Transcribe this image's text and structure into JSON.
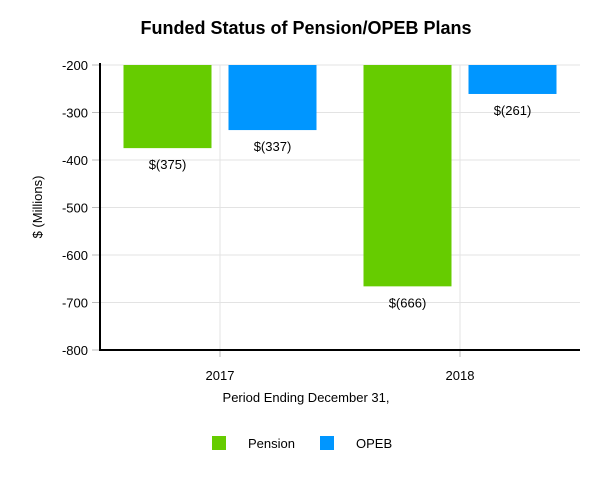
{
  "chart_data": {
    "type": "bar",
    "title": "Funded Status of Pension/OPEB Plans",
    "xlabel": "Period Ending December 31,",
    "ylabel": "$ (Millions)",
    "categories": [
      "2017",
      "2018"
    ],
    "series": [
      {
        "name": "Pension",
        "values": [
          -375,
          -666
        ],
        "labels": [
          "$(375)",
          "$(666)"
        ],
        "color": "#66cc00"
      },
      {
        "name": "OPEB",
        "values": [
          -337,
          -261
        ],
        "labels": [
          "$(337)",
          "$(261)"
        ],
        "color": "#0096ff"
      }
    ],
    "ylim": [
      -800,
      -200
    ],
    "yticks": [
      -200,
      -300,
      -400,
      -500,
      -600,
      -700,
      -800
    ],
    "grid": true,
    "legend": "bottom"
  }
}
